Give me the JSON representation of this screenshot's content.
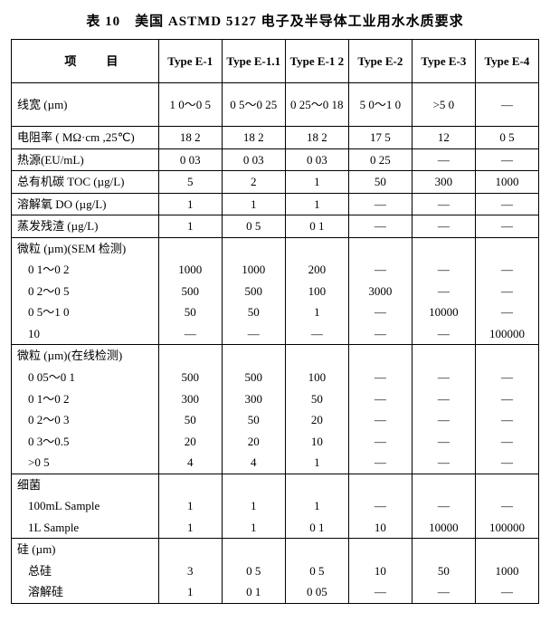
{
  "title": "表 10　美国 ASTMD 5127 电子及半导体工业用水水质要求",
  "header": {
    "item": "项　目",
    "types": [
      "Type E-1",
      "Type E-1.1",
      "Type E-1 2",
      "Type E-2",
      "Type E-3",
      "Type E-4"
    ]
  },
  "rows": [
    {
      "kind": "row",
      "tall": true,
      "label": "线宽 (µm)",
      "cells": [
        "1 0～0 5",
        "0 5～0 25",
        "0 25～0 18",
        "5 0～1 0",
        ">5 0",
        "—"
      ]
    },
    {
      "kind": "row",
      "label": "电阻率 ( MΩ·cm ,25℃)",
      "cells": [
        "18 2",
        "18 2",
        "18 2",
        "17 5",
        "12",
        "0 5"
      ]
    },
    {
      "kind": "row",
      "label": "热源(EU/mL)",
      "cells": [
        "0 03",
        "0 03",
        "0 03",
        "0 25",
        "—",
        "—"
      ]
    },
    {
      "kind": "row",
      "label": "总有机碳 TOC (µg/L)",
      "cells": [
        "5",
        "2",
        "1",
        "50",
        "300",
        "1000"
      ]
    },
    {
      "kind": "row",
      "label": "溶解氧 DO (µg/L)",
      "cells": [
        "1",
        "1",
        "1",
        "—",
        "—",
        "—"
      ]
    },
    {
      "kind": "row",
      "label": "蒸发残渣 (µg/L)",
      "cells": [
        "1",
        "0 5",
        "0 1",
        "—",
        "—",
        "—"
      ]
    },
    {
      "kind": "group-head",
      "label": "微粒 (µm)(SEM 检测)"
    },
    {
      "kind": "sub",
      "label": "0 1～0 2",
      "cells": [
        "1000",
        "1000",
        "200",
        "—",
        "—",
        "—"
      ]
    },
    {
      "kind": "sub",
      "label": "0 2～0 5",
      "cells": [
        "500",
        "500",
        "100",
        "3000",
        "—",
        "—"
      ]
    },
    {
      "kind": "sub",
      "label": "0 5～1 0",
      "cells": [
        "50",
        "50",
        "1",
        "—",
        "10000",
        "—"
      ]
    },
    {
      "kind": "sub-last",
      "label": "10",
      "cells": [
        "—",
        "—",
        "—",
        "—",
        "—",
        "100000"
      ]
    },
    {
      "kind": "group-head",
      "label": "微粒 (µm)(在线检测)"
    },
    {
      "kind": "sub",
      "label": "0 05～0 1",
      "cells": [
        "500",
        "500",
        "100",
        "—",
        "—",
        "—"
      ]
    },
    {
      "kind": "sub",
      "label": "0 1～0 2",
      "cells": [
        "300",
        "300",
        "50",
        "—",
        "—",
        "—"
      ]
    },
    {
      "kind": "sub",
      "label": "0 2～0 3",
      "cells": [
        "50",
        "50",
        "20",
        "—",
        "—",
        "—"
      ]
    },
    {
      "kind": "sub",
      "label": "0 3～0.5",
      "cells": [
        "20",
        "20",
        "10",
        "—",
        "—",
        "—"
      ]
    },
    {
      "kind": "sub-last",
      "label": ">0 5",
      "cells": [
        "4",
        "4",
        "1",
        "—",
        "—",
        "—"
      ]
    },
    {
      "kind": "group-head",
      "label": "细菌"
    },
    {
      "kind": "sub",
      "label": "100mL Sample",
      "cells": [
        "1",
        "1",
        "1",
        "—",
        "—",
        "—"
      ]
    },
    {
      "kind": "sub-last",
      "label": "1L Sample",
      "cells": [
        "1",
        "1",
        "0 1",
        "10",
        "10000",
        "100000"
      ]
    },
    {
      "kind": "group-head",
      "label": "硅 (µm)"
    },
    {
      "kind": "sub",
      "label": "总硅",
      "cells": [
        "3",
        "0 5",
        "0 5",
        "10",
        "50",
        "1000"
      ]
    },
    {
      "kind": "sub-last",
      "label": "溶解硅",
      "cells": [
        "1",
        "0 1",
        "0 05",
        "—",
        "—",
        "—"
      ]
    }
  ]
}
